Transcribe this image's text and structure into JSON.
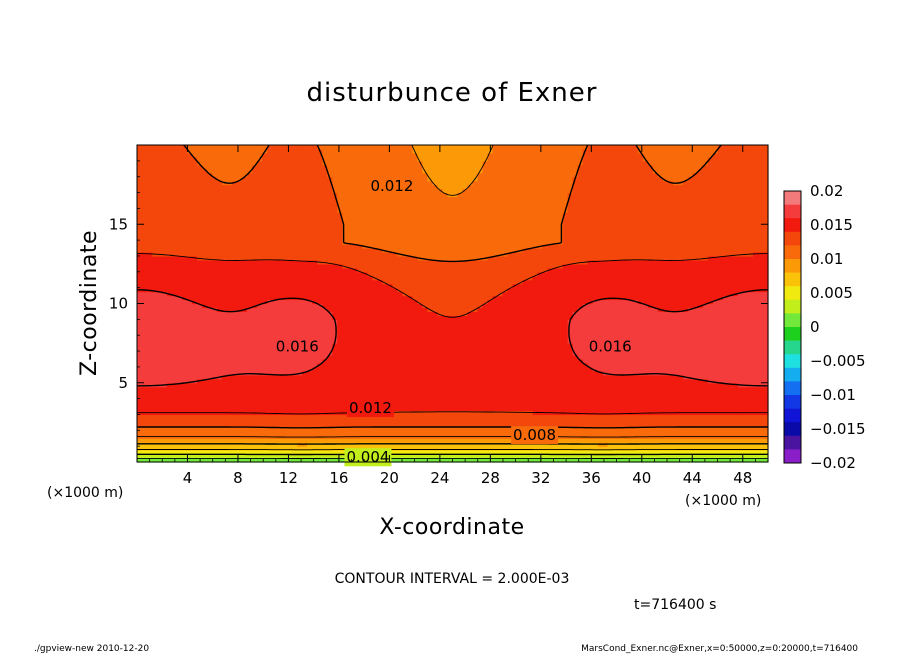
{
  "chart_data": {
    "type": "contour",
    "title": "disturbunce of Exner",
    "xlabel": "X-coordinate",
    "ylabel": "Z-coordinate",
    "x_unit_label_left": "(×1000 m)",
    "x_unit_label_right": "(×1000 m)",
    "xlim": [
      0,
      50
    ],
    "ylim": [
      0,
      20
    ],
    "x_ticks": [
      4,
      8,
      12,
      16,
      20,
      24,
      28,
      32,
      36,
      40,
      44,
      48
    ],
    "y_ticks": [
      5,
      10,
      15
    ],
    "contour_interval_text": "CONTOUR INTERVAL = 2.000E-03",
    "time_text": "t=716400 s",
    "colorbar": {
      "ticks": [
        "0.02",
        "0.015",
        "0.01",
        "0.005",
        "0",
        "−0.005",
        "−0.01",
        "−0.015",
        "−0.02"
      ],
      "levels": [
        {
          "from": 0.018,
          "to": 0.02,
          "color": "#f37a7a"
        },
        {
          "from": 0.016,
          "to": 0.018,
          "color": "#f53c3c"
        },
        {
          "from": 0.014,
          "to": 0.016,
          "color": "#f21a0e"
        },
        {
          "from": 0.012,
          "to": 0.014,
          "color": "#f4470b"
        },
        {
          "from": 0.01,
          "to": 0.012,
          "color": "#f86a0a"
        },
        {
          "from": 0.008,
          "to": 0.01,
          "color": "#fb9a06"
        },
        {
          "from": 0.006,
          "to": 0.008,
          "color": "#fbc20a"
        },
        {
          "from": 0.004,
          "to": 0.006,
          "color": "#f0ea10"
        },
        {
          "from": 0.002,
          "to": 0.004,
          "color": "#c2ee1c"
        },
        {
          "from": 0.0,
          "to": 0.002,
          "color": "#72e83a"
        },
        {
          "from": -0.002,
          "to": 0.0,
          "color": "#1ed01e"
        },
        {
          "from": -0.004,
          "to": -0.002,
          "color": "#26d68c"
        },
        {
          "from": -0.006,
          "to": -0.004,
          "color": "#1ee0e0"
        },
        {
          "from": -0.008,
          "to": -0.006,
          "color": "#14aef0"
        },
        {
          "from": -0.01,
          "to": -0.008,
          "color": "#1470f0"
        },
        {
          "from": -0.012,
          "to": -0.01,
          "color": "#1238e6"
        },
        {
          "from": -0.014,
          "to": -0.012,
          "color": "#0f14d6"
        },
        {
          "from": -0.016,
          "to": -0.014,
          "color": "#0a0aa8"
        },
        {
          "from": -0.018,
          "to": -0.016,
          "color": "#4a14a0"
        },
        {
          "from": -0.02,
          "to": -0.018,
          "color": "#8a1ec8"
        }
      ]
    },
    "contour_labels": [
      {
        "text": "0.012",
        "x": 20.2,
        "z": 17.4
      },
      {
        "text": "0.016",
        "x": 12.7,
        "z": 7.3
      },
      {
        "text": "0.016",
        "x": 37.5,
        "z": 7.3
      },
      {
        "text": "0.012",
        "x": 18.5,
        "z": 3.4
      },
      {
        "text": "0.008",
        "x": 31.5,
        "z": 1.7
      },
      {
        "text": "0.004",
        "x": 18.3,
        "z": 0.3
      }
    ]
  },
  "footer": {
    "left": "./gpview-new  2010-12-20",
    "right": "MarsCond_Exner.nc@Exner,x=0:50000,z=0:20000,t=716400"
  }
}
